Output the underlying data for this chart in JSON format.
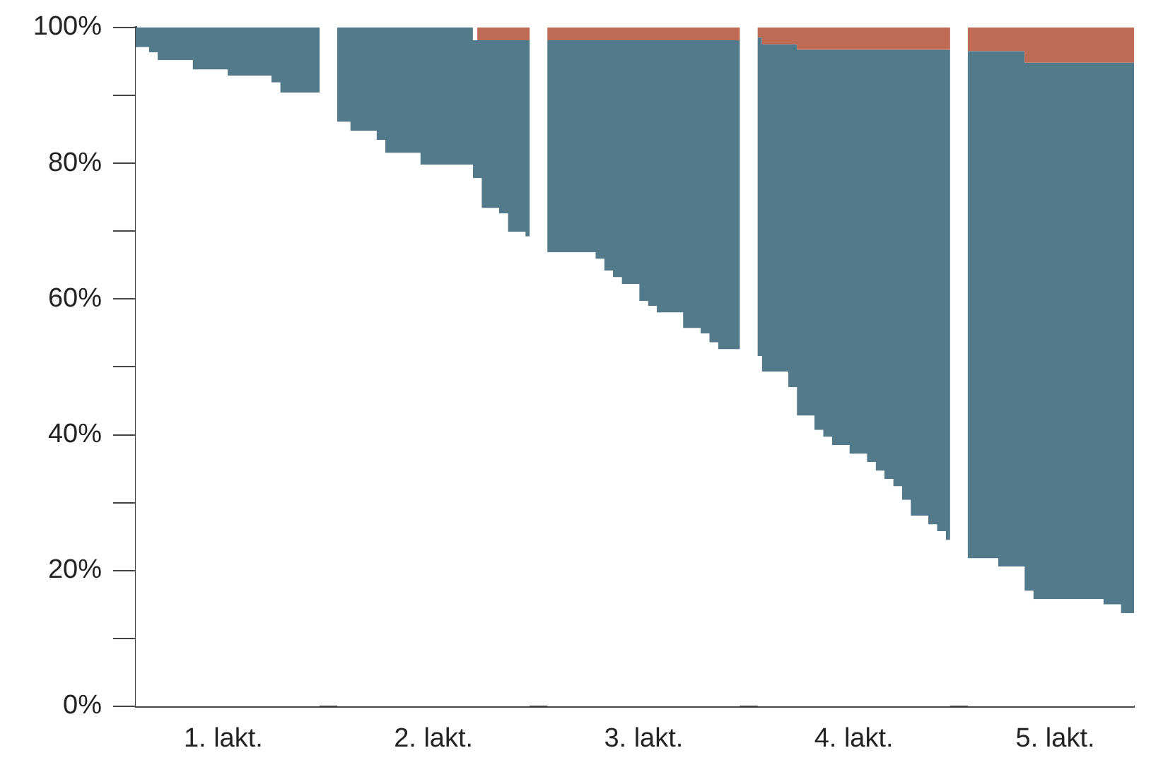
{
  "chart_data": {
    "type": "area",
    "stacked": true,
    "categories": [
      null,
      null,
      null,
      null,
      null,
      null,
      null,
      null,
      null,
      null,
      "1. lakt.",
      null,
      null,
      null,
      null,
      null,
      null,
      null,
      null,
      null,
      null,
      null,
      null,
      null,
      null,
      null,
      null,
      null,
      null,
      null,
      null,
      null,
      null,
      null,
      "2. lakt.",
      null,
      null,
      null,
      null,
      null,
      null,
      null,
      null,
      null,
      null,
      null,
      null,
      null,
      null,
      null,
      null,
      null,
      null,
      null,
      null,
      null,
      null,
      null,
      "3. lakt.",
      null,
      null,
      null,
      null,
      null,
      null,
      null,
      null,
      null,
      null,
      null,
      null,
      null,
      null,
      null,
      null,
      null,
      null,
      null,
      null,
      null,
      null,
      null,
      "4. lakt.",
      null,
      null,
      null,
      null,
      null,
      null,
      null,
      null,
      null,
      null,
      null,
      null,
      null,
      null,
      null,
      null,
      null,
      null,
      null,
      null,
      null,
      null,
      "5. lakt.",
      null,
      null,
      null,
      null,
      null,
      null,
      null,
      null,
      null
    ],
    "series": [
      {
        "color": "#ffffff",
        "values": [
          97.1,
          97.1,
          96.3,
          95.2,
          95.2,
          95.2,
          95.2,
          93.8,
          93.8,
          93.8,
          93.8,
          92.9,
          92.9,
          92.9,
          92.9,
          92.9,
          91.9,
          90.4,
          90.4,
          90.4,
          90.4,
          90.4,
          null,
          86.1,
          86.1,
          84.8,
          84.8,
          84.8,
          83.4,
          81.5,
          81.5,
          81.5,
          81.5,
          79.8,
          79.8,
          79.8,
          79.8,
          79.8,
          79.8,
          77.8,
          73.4,
          73.4,
          72.6,
          69.9,
          69.9,
          69.2,
          null,
          66.9,
          66.9,
          66.9,
          66.9,
          66.9,
          66.9,
          65.9,
          64.2,
          63.2,
          62.2,
          62.2,
          59.7,
          59.0,
          58.0,
          58.0,
          58.0,
          55.7,
          55.7,
          54.9,
          53.6,
          52.6,
          52.6,
          52.6,
          null,
          51.6,
          49.3,
          49.3,
          49.3,
          47.0,
          42.8,
          42.8,
          40.7,
          39.7,
          38.5,
          38.5,
          37.2,
          37.2,
          36.0,
          34.7,
          33.5,
          32.4,
          30.4,
          28.1,
          28.1,
          26.8,
          25.8,
          24.5,
          null,
          21.8,
          21.8,
          21.8,
          21.8,
          20.6,
          20.6,
          20.6,
          17.0,
          15.8,
          15.8,
          15.8,
          15.8,
          15.8,
          15.8,
          15.8,
          15.8,
          15.0,
          15.0,
          13.7,
          13.7
        ]
      },
      {
        "color": "#537a8a",
        "values": [
          2.9,
          2.9,
          3.7,
          4.8,
          4.8,
          4.8,
          4.8,
          6.2,
          6.2,
          6.2,
          6.2,
          7.1,
          7.1,
          7.1,
          7.1,
          7.1,
          8.1,
          9.6,
          9.6,
          9.6,
          9.6,
          9.6,
          null,
          13.9,
          13.9,
          15.2,
          15.2,
          15.2,
          16.6,
          18.5,
          18.5,
          18.5,
          18.5,
          20.2,
          20.2,
          20.2,
          20.2,
          20.2,
          20.2,
          20.3,
          24.7,
          24.7,
          25.5,
          28.2,
          28.2,
          28.9,
          null,
          31.2,
          31.2,
          31.2,
          31.2,
          31.2,
          31.2,
          32.2,
          33.9,
          34.9,
          35.9,
          35.9,
          38.4,
          39.1,
          40.1,
          40.1,
          40.1,
          42.4,
          42.4,
          43.2,
          44.5,
          45.5,
          45.5,
          45.5,
          null,
          46.9,
          48.2,
          48.2,
          48.2,
          50.5,
          53.9,
          53.9,
          56.0,
          57.0,
          58.2,
          58.2,
          59.5,
          59.5,
          60.7,
          62.0,
          63.2,
          64.3,
          66.3,
          68.6,
          68.6,
          69.9,
          70.9,
          72.2,
          null,
          74.7,
          74.7,
          74.7,
          74.7,
          75.9,
          75.9,
          75.9,
          77.8,
          79.0,
          79.0,
          79.0,
          79.0,
          79.0,
          79.0,
          79.0,
          79.0,
          79.8,
          79.8,
          81.1,
          81.1
        ]
      },
      {
        "color": "#bf6a55",
        "values": [
          null,
          null,
          null,
          null,
          null,
          null,
          null,
          null,
          null,
          null,
          null,
          null,
          null,
          null,
          null,
          null,
          null,
          null,
          null,
          null,
          null,
          null,
          null,
          null,
          null,
          null,
          null,
          null,
          null,
          null,
          null,
          null,
          null,
          null,
          null,
          null,
          null,
          null,
          null,
          1.9,
          1.9,
          1.9,
          1.9,
          1.9,
          1.9,
          1.9,
          null,
          1.9,
          1.9,
          1.9,
          1.9,
          1.9,
          1.9,
          1.9,
          1.9,
          1.9,
          1.9,
          1.9,
          1.9,
          1.9,
          1.9,
          1.9,
          1.9,
          1.9,
          1.9,
          1.9,
          1.9,
          1.9,
          1.9,
          1.9,
          null,
          1.5,
          2.5,
          2.5,
          2.5,
          2.5,
          3.3,
          3.3,
          3.3,
          3.3,
          3.3,
          3.3,
          3.3,
          3.3,
          3.3,
          3.3,
          3.3,
          3.3,
          3.3,
          3.3,
          3.3,
          3.3,
          3.3,
          3.3,
          null,
          3.5,
          3.5,
          3.5,
          3.5,
          3.5,
          3.5,
          3.5,
          5.2,
          5.2,
          5.2,
          5.2,
          5.2,
          5.2,
          5.2,
          5.2,
          5.2,
          5.2,
          5.2,
          5.2,
          5.2
        ]
      }
    ],
    "ylim": [
      0,
      100
    ],
    "yticks": [
      {
        "value": 0,
        "label": "0%"
      },
      {
        "value": 10,
        "label": null
      },
      {
        "value": 20,
        "label": "20%"
      },
      {
        "value": 30,
        "label": null
      },
      {
        "value": 40,
        "label": "40%"
      },
      {
        "value": 50,
        "label": null
      },
      {
        "value": 60,
        "label": "60%"
      },
      {
        "value": 70,
        "label": null
      },
      {
        "value": 80,
        "label": "80%"
      },
      {
        "value": 90,
        "label": null
      },
      {
        "value": 100,
        "label": "100%"
      }
    ],
    "grid": false,
    "legend": false
  }
}
